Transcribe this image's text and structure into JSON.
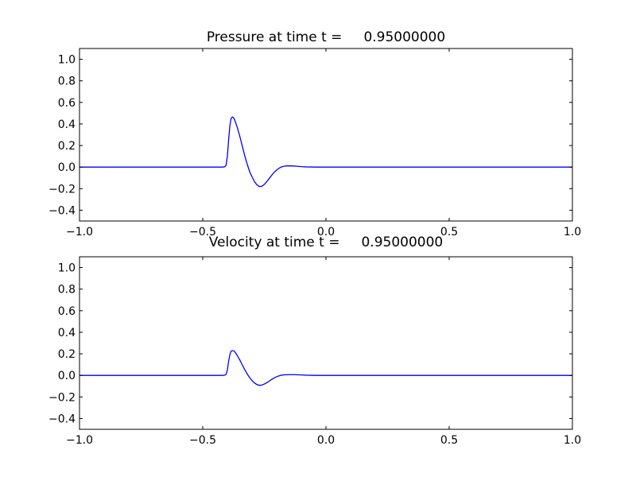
{
  "chart_data": [
    {
      "type": "line",
      "title": "Pressure at time t =     0.95000000",
      "xlim": [
        -1.0,
        1.0
      ],
      "ylim": [
        -0.5,
        1.1
      ],
      "xticks": [
        -1.0,
        -0.5,
        0.0,
        0.5,
        1.0
      ],
      "xtick_labels": [
        "−1.0",
        "−0.5",
        "0.0",
        "0.5",
        "1.0"
      ],
      "yticks": [
        -0.4,
        -0.2,
        0.0,
        0.2,
        0.4,
        0.6,
        0.8,
        1.0
      ],
      "ytick_labels": [
        "−0.4",
        "−0.2",
        "0.0",
        "0.2",
        "0.4",
        "0.6",
        "0.8",
        "1.0"
      ],
      "grid": false,
      "color": "#0000ff",
      "series": [
        {
          "x": [
            -1.0,
            -0.5,
            -0.42,
            -0.41,
            -0.405,
            -0.4,
            -0.395,
            -0.39,
            -0.385,
            -0.38,
            -0.375,
            -0.37,
            -0.36,
            -0.35,
            -0.34,
            -0.33,
            -0.32,
            -0.31,
            -0.3,
            -0.29,
            -0.28,
            -0.27,
            -0.26,
            -0.25,
            -0.24,
            -0.23,
            -0.22,
            -0.21,
            -0.2,
            -0.19,
            -0.18,
            -0.17,
            -0.16,
            -0.15,
            -0.14,
            -0.13,
            -0.12,
            -0.11,
            -0.1,
            -0.08,
            -0.06,
            -0.04,
            -0.02,
            0.0,
            0.05,
            0.1,
            0.5,
            1.0
          ],
          "y": [
            0.0,
            0.0,
            0.0,
            0.003,
            0.02,
            0.1,
            0.25,
            0.38,
            0.45,
            0.465,
            0.458,
            0.435,
            0.37,
            0.29,
            0.2,
            0.11,
            0.03,
            -0.04,
            -0.09,
            -0.135,
            -0.165,
            -0.18,
            -0.178,
            -0.16,
            -0.135,
            -0.105,
            -0.075,
            -0.048,
            -0.027,
            -0.01,
            0.002,
            0.008,
            0.011,
            0.012,
            0.011,
            0.01,
            0.008,
            0.006,
            0.004,
            0.002,
            0.001,
            0.0,
            0.0,
            0.0,
            0.0,
            0.0,
            0.0,
            0.0
          ]
        }
      ]
    },
    {
      "type": "line",
      "title": "Velocity at time t =     0.95000000",
      "xlim": [
        -1.0,
        1.0
      ],
      "ylim": [
        -0.5,
        1.1
      ],
      "xticks": [
        -1.0,
        -0.5,
        0.0,
        0.5,
        1.0
      ],
      "xtick_labels": [
        "−1.0",
        "−0.5",
        "0.0",
        "0.5",
        "1.0"
      ],
      "yticks": [
        -0.4,
        -0.2,
        0.0,
        0.2,
        0.4,
        0.6,
        0.8,
        1.0
      ],
      "ytick_labels": [
        "−0.4",
        "−0.2",
        "0.0",
        "0.2",
        "0.4",
        "0.6",
        "0.8",
        "1.0"
      ],
      "grid": false,
      "color": "#0000ff",
      "series": [
        {
          "x": [
            -1.0,
            -0.5,
            -0.42,
            -0.41,
            -0.405,
            -0.4,
            -0.395,
            -0.39,
            -0.385,
            -0.38,
            -0.375,
            -0.37,
            -0.36,
            -0.35,
            -0.34,
            -0.33,
            -0.32,
            -0.31,
            -0.3,
            -0.29,
            -0.28,
            -0.27,
            -0.26,
            -0.25,
            -0.24,
            -0.23,
            -0.22,
            -0.21,
            -0.2,
            -0.19,
            -0.18,
            -0.17,
            -0.16,
            -0.15,
            -0.14,
            -0.13,
            -0.12,
            -0.11,
            -0.1,
            -0.08,
            -0.06,
            -0.04,
            -0.02,
            0.0,
            0.05,
            0.1,
            0.5,
            1.0
          ],
          "y": [
            0.0,
            0.0,
            0.0,
            0.002,
            0.01,
            0.05,
            0.13,
            0.19,
            0.225,
            0.23,
            0.228,
            0.22,
            0.185,
            0.145,
            0.1,
            0.055,
            0.015,
            -0.02,
            -0.048,
            -0.07,
            -0.085,
            -0.092,
            -0.09,
            -0.08,
            -0.068,
            -0.053,
            -0.037,
            -0.023,
            -0.012,
            -0.004,
            0.002,
            0.005,
            0.006,
            0.007,
            0.007,
            0.007,
            0.006,
            0.005,
            0.004,
            0.002,
            0.001,
            0.0,
            0.0,
            0.0,
            0.0,
            0.0,
            0.0,
            0.0
          ]
        }
      ]
    }
  ]
}
